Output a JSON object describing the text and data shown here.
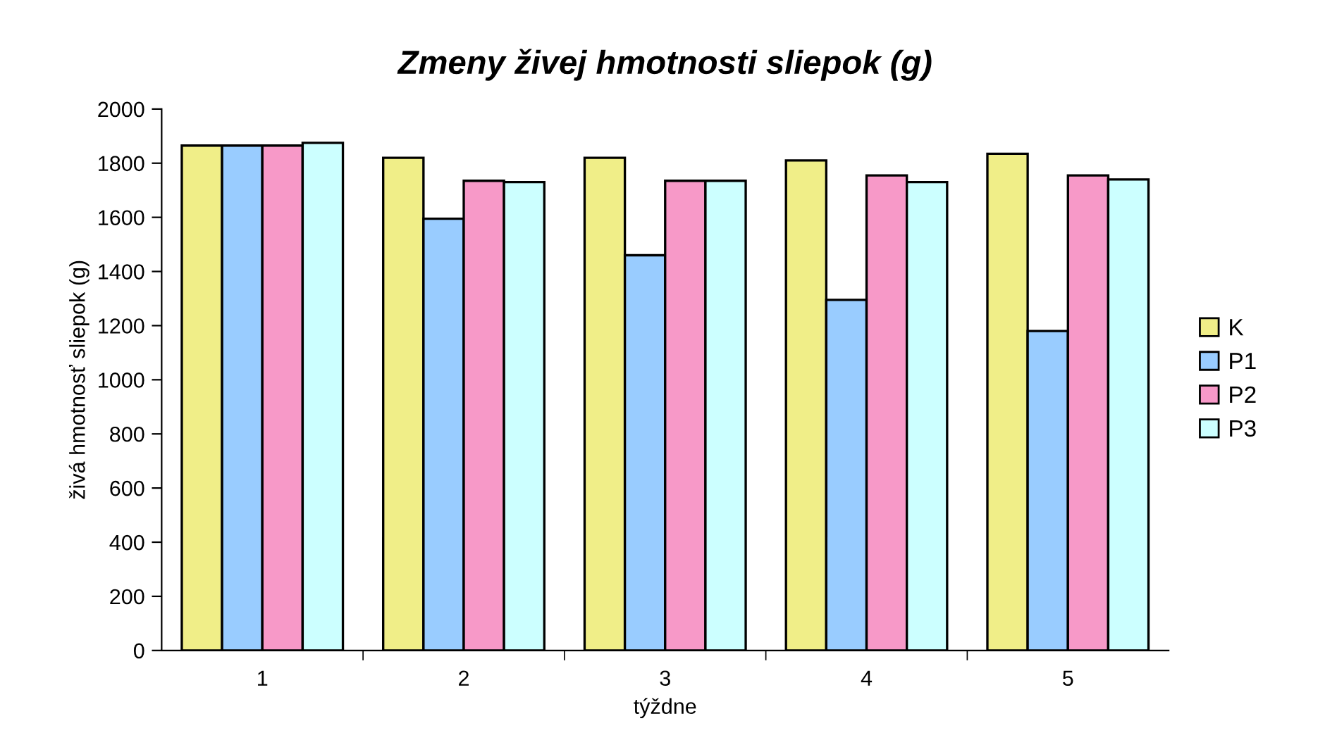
{
  "chart_data": {
    "type": "bar",
    "title": "Zmeny živej hmotnosti sliepok (g)",
    "xlabel": "týždne",
    "ylabel": "živá hmotnosť sliepok (g)",
    "categories": [
      "1",
      "2",
      "3",
      "4",
      "5"
    ],
    "series": [
      {
        "name": "K",
        "color": "#f0ee88",
        "values": [
          1865,
          1820,
          1820,
          1810,
          1835
        ]
      },
      {
        "name": "P1",
        "color": "#99ccff",
        "values": [
          1865,
          1595,
          1460,
          1295,
          1180
        ]
      },
      {
        "name": "P2",
        "color": "#f799c8",
        "values": [
          1865,
          1735,
          1735,
          1755,
          1755
        ]
      },
      {
        "name": "P3",
        "color": "#ccffff",
        "values": [
          1875,
          1730,
          1735,
          1730,
          1740
        ]
      }
    ],
    "ylim": [
      0,
      2000
    ],
    "yticks": [
      0,
      200,
      400,
      600,
      800,
      1000,
      1200,
      1400,
      1600,
      1800,
      2000
    ],
    "grid": false,
    "legend": "right"
  }
}
